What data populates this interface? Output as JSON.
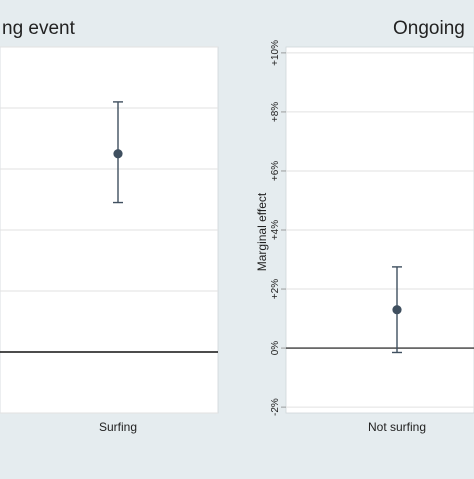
{
  "colors": {
    "background": "#e5ecef",
    "plot_area": "#ffffff",
    "gridline": "#e2e2e2",
    "marker": "#3f4f5f",
    "text": "#222222",
    "zero_line": "#111111"
  },
  "chart_data": [
    {
      "type": "scatter",
      "subtype": "point-with-error-bars",
      "title": "ng event",
      "xlabel": "",
      "ylabel": "",
      "categories": [
        "Surfing"
      ],
      "ylim": [
        -2,
        10
      ],
      "grid": true,
      "points": [
        {
          "category": "Surfing",
          "estimate": 6.5,
          "ci_low": 4.9,
          "ci_high": 8.2
        }
      ],
      "reference_line": 0
    },
    {
      "type": "scatter",
      "subtype": "point-with-error-bars",
      "title": "Ongoing",
      "xlabel": "",
      "ylabel": "Marginal effect",
      "categories": [
        "Not surfing"
      ],
      "yticks": [
        -2,
        0,
        2,
        4,
        6,
        8,
        10
      ],
      "ytick_labels": [
        "-2%",
        "0%",
        "+2%",
        "+4%",
        "+6%",
        "+8%",
        "+10%"
      ],
      "ylim": [
        -2.2,
        10.2
      ],
      "grid": true,
      "points": [
        {
          "category": "Not surfing",
          "estimate": 1.3,
          "ci_low": -0.15,
          "ci_high": 2.75
        }
      ],
      "reference_line": 0
    }
  ]
}
